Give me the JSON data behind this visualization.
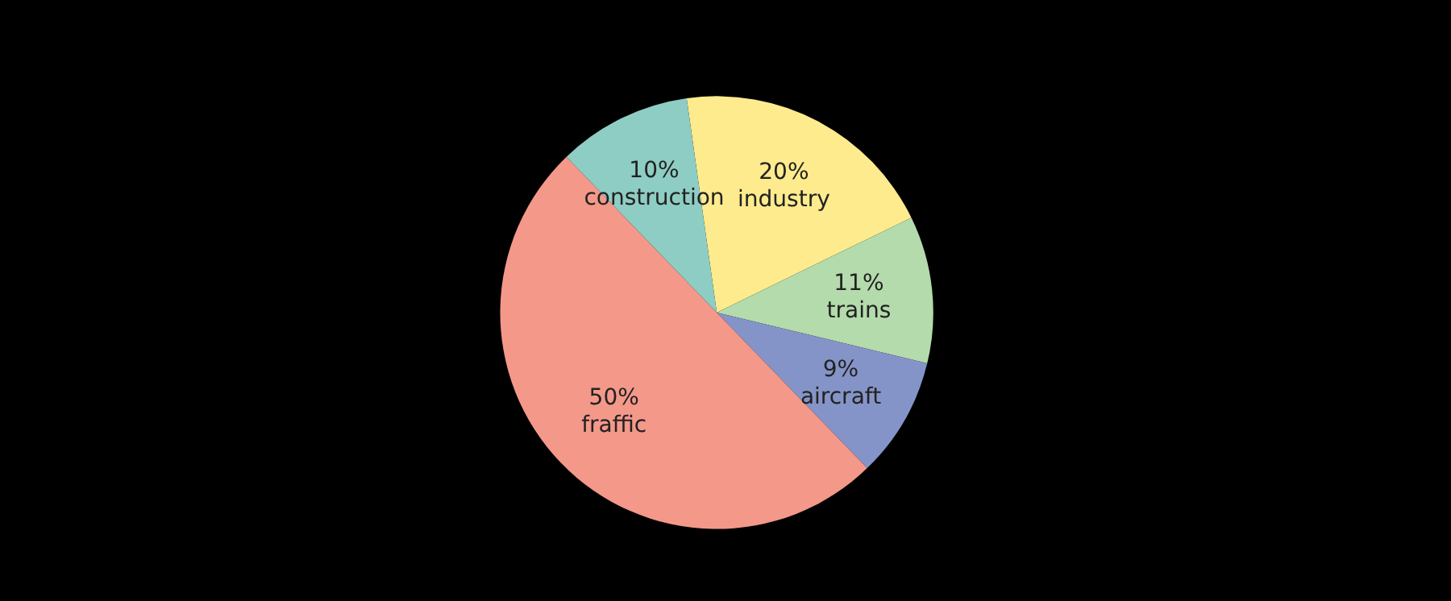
{
  "chart_data": {
    "type": "pie",
    "categories": [
      "industry",
      "trains",
      "aircraft",
      "fraffic",
      "construction"
    ],
    "values": [
      20,
      11,
      9,
      50,
      10
    ],
    "value_labels": [
      "20%",
      "11%",
      "9%",
      "50%",
      "10%"
    ],
    "colors": [
      "#fdeb8e",
      "#b4dbab",
      "#8594c8",
      "#f4988a",
      "#8ecdc3"
    ],
    "legend": false
  }
}
